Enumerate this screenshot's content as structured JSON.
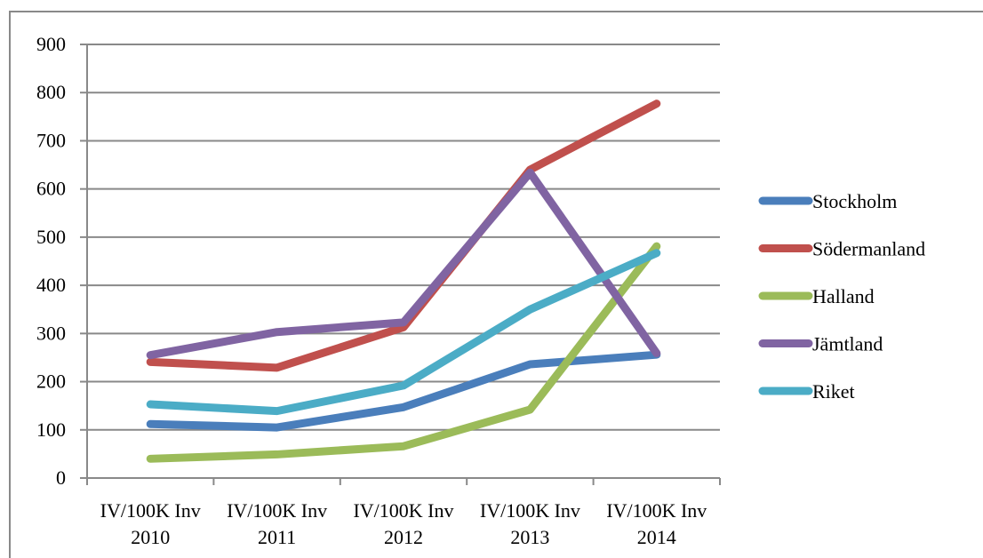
{
  "chart_data": {
    "type": "line",
    "title": "",
    "xlabel": "",
    "ylabel": "",
    "categories": [
      [
        "IV/100K Inv",
        "2010"
      ],
      [
        "IV/100K Inv",
        "2011"
      ],
      [
        "IV/100K Inv",
        "2012"
      ],
      [
        "IV/100K Inv",
        "2013"
      ],
      [
        "IV/100K Inv",
        "2014"
      ]
    ],
    "ylim": [
      0,
      900
    ],
    "yticks": [
      0,
      100,
      200,
      300,
      400,
      500,
      600,
      700,
      800,
      900
    ],
    "grid": true,
    "legend": "right",
    "series": [
      {
        "name": "Stockholm",
        "color": "#4a7ebb",
        "values": [
          112,
          105,
          147,
          236,
          256
        ]
      },
      {
        "name": "Södermanland",
        "color": "#c0504d",
        "values": [
          241,
          229,
          313,
          640,
          777
        ]
      },
      {
        "name": "Halland",
        "color": "#9bbb59",
        "values": [
          40,
          49,
          66,
          142,
          481
        ]
      },
      {
        "name": "Jämtland",
        "color": "#8064a2",
        "values": [
          255,
          303,
          323,
          634,
          259
        ]
      },
      {
        "name": "Riket",
        "color": "#4bacc6",
        "values": [
          153,
          139,
          192,
          350,
          467
        ]
      }
    ]
  }
}
